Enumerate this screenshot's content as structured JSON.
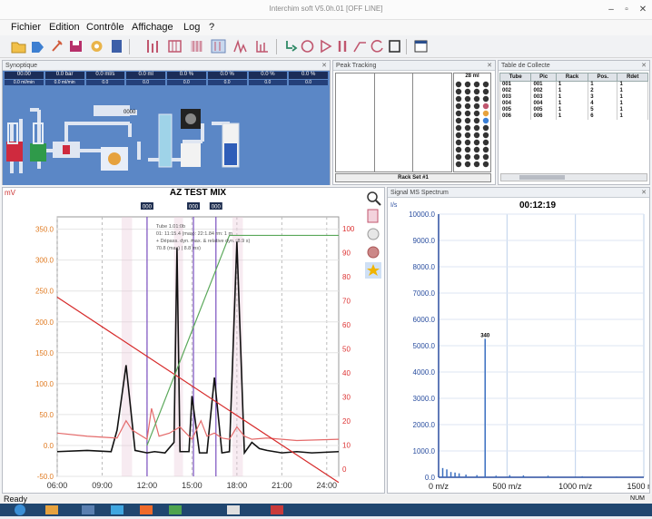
{
  "window": {
    "title": "Interchim soft V5.0h.01 [OFF LINE]",
    "min_label": "‒",
    "max_label": "▫",
    "close_label": "✕"
  },
  "menu": [
    "Fichier",
    "Edition",
    "Contrôle",
    "Affichage",
    "Log",
    "?"
  ],
  "toolbar": {
    "icons": [
      "open-folder-icon",
      "tag-icon",
      "pin-icon",
      "save-icon",
      "settings-icon",
      "sample-icon",
      "fraction-bars-icon",
      "fraction-grid-icon",
      "fraction-select-icon",
      "fraction-split-icon",
      "fraction-peak-icon",
      "fraction-collect-icon",
      "valve-icon",
      "rotate-icon",
      "play-icon",
      "pause-icon",
      "ramp-icon",
      "restart-icon",
      "stop-icon",
      "window-icon"
    ]
  },
  "panels": {
    "synoptic": "Synoptique",
    "peak_tracking": "Peak Tracking",
    "collect_table": "Table de Collecte",
    "signal": "Signal MS Spectrum"
  },
  "synoptic": {
    "readouts": [
      "00.00",
      "0.0 bar",
      "0.0 ml/s",
      "0.0 ml",
      "0.0 %",
      "0.0 %",
      "0.0 %",
      "0.0 %"
    ],
    "sub_readouts": [
      "0.0 ml/min",
      "0.0 ml/min",
      "0.0",
      "0.0",
      "0.0",
      "0.0",
      "0.0",
      "0.0"
    ],
    "pump_label": "0000"
  },
  "peak_tracking": {
    "rack_label": "Rack Set #1",
    "tube_count": "28 ml"
  },
  "collect_table": {
    "columns": [
      "Tube",
      "Pic",
      "Rack",
      "Pos.",
      "Rdet"
    ],
    "rows": [
      [
        "001",
        "001",
        "1",
        "1",
        "1"
      ],
      [
        "002",
        "002",
        "1",
        "2",
        "1"
      ],
      [
        "003",
        "003",
        "1",
        "3",
        "1"
      ],
      [
        "004",
        "004",
        "1",
        "4",
        "1"
      ],
      [
        "005",
        "005",
        "1",
        "5",
        "1"
      ],
      [
        "006",
        "006",
        "1",
        "6",
        "1"
      ]
    ]
  },
  "chart_data": [
    {
      "type": "line",
      "title": "AZ TEST MIX",
      "ylabel": "mV",
      "ylim": [
        -50,
        370
      ],
      "y2lim": [
        -3,
        105
      ],
      "x_ticks": [
        "06:00",
        "09:00",
        "12:00",
        "15:00",
        "18:00",
        "21:00",
        "24:00"
      ],
      "y_ticks": [
        "350.0",
        "300.0",
        "250.0",
        "200.0",
        "150.0",
        "100.0",
        "50.0",
        "0.0",
        "-50.0"
      ],
      "y2_ticks": [
        "100",
        "90",
        "80",
        "70",
        "60",
        "50",
        "40",
        "30",
        "20",
        "10",
        "0"
      ],
      "series": [
        {
          "color": "#111111",
          "x": [
            6,
            8,
            9.6,
            10,
            10.6,
            11.2,
            12,
            12.5,
            13.2,
            13.8,
            14,
            14.2,
            14.8,
            15,
            15.5,
            16,
            16.5,
            17,
            17.5,
            18,
            18.5,
            19,
            19.5,
            20,
            21,
            22,
            23,
            24.8
          ],
          "y": [
            -10,
            -8,
            -10,
            25,
            130,
            -8,
            -12,
            -10,
            -12,
            5,
            320,
            -10,
            -10,
            80,
            -12,
            -12,
            110,
            -12,
            -10,
            330,
            -12,
            5,
            -5,
            -8,
            -12,
            -10,
            -12,
            -10
          ]
        },
        {
          "color": "#e46a6a",
          "x": [
            6,
            8,
            10,
            10.6,
            11,
            12,
            12.3,
            12.8,
            13.5,
            14.2,
            15,
            15.6,
            16,
            16.5,
            17,
            17.5,
            18,
            18.5,
            19,
            20,
            22,
            24.8
          ],
          "y": [
            20,
            15,
            12,
            40,
            25,
            10,
            60,
            15,
            20,
            30,
            10,
            40,
            15,
            20,
            12,
            10,
            30,
            15,
            10,
            12,
            8,
            10
          ]
        },
        {
          "color": "#d62a2a",
          "x": [
            6,
            24.8
          ],
          "y": [
            240,
            -60
          ]
        },
        {
          "color": "#5aa85a",
          "x": [
            12,
            17.5,
            24.8
          ],
          "y": [
            0,
            340,
            340
          ]
        }
      ],
      "markers": [
        "000",
        "000",
        "000"
      ],
      "annotations": [
        "Tube 1.01:0b",
        "01: 11:15.4 (max): 22:1.84 rm: 1 m",
        "+ Dépass. dyn. max. & relative dyn.: 8.9 s)",
        "70.8 (max) | 8.8 ms)"
      ]
    },
    {
      "type": "bar",
      "title": "00:12:19",
      "ylabel": "I/s",
      "ylim": [
        0,
        10000
      ],
      "x_ticks": [
        "0 m/z",
        "500 m/z",
        "1000 m/z",
        "1500 m/z"
      ],
      "y_ticks": [
        "10000.0",
        "9000.0",
        "8000.0",
        "7000.0",
        "6000.0",
        "5000.0",
        "4000.0",
        "3000.0",
        "2000.0",
        "1000.0",
        "0.0"
      ],
      "peak_label": "340",
      "x": [
        30,
        60,
        90,
        120,
        150,
        200,
        280,
        340,
        420,
        520,
        620,
        800,
        1050,
        1300
      ],
      "values": [
        350,
        300,
        200,
        180,
        150,
        100,
        80,
        5400,
        60,
        80,
        70,
        60,
        40,
        30
      ]
    }
  ],
  "status": "Ready",
  "scroll_note": "NUM"
}
